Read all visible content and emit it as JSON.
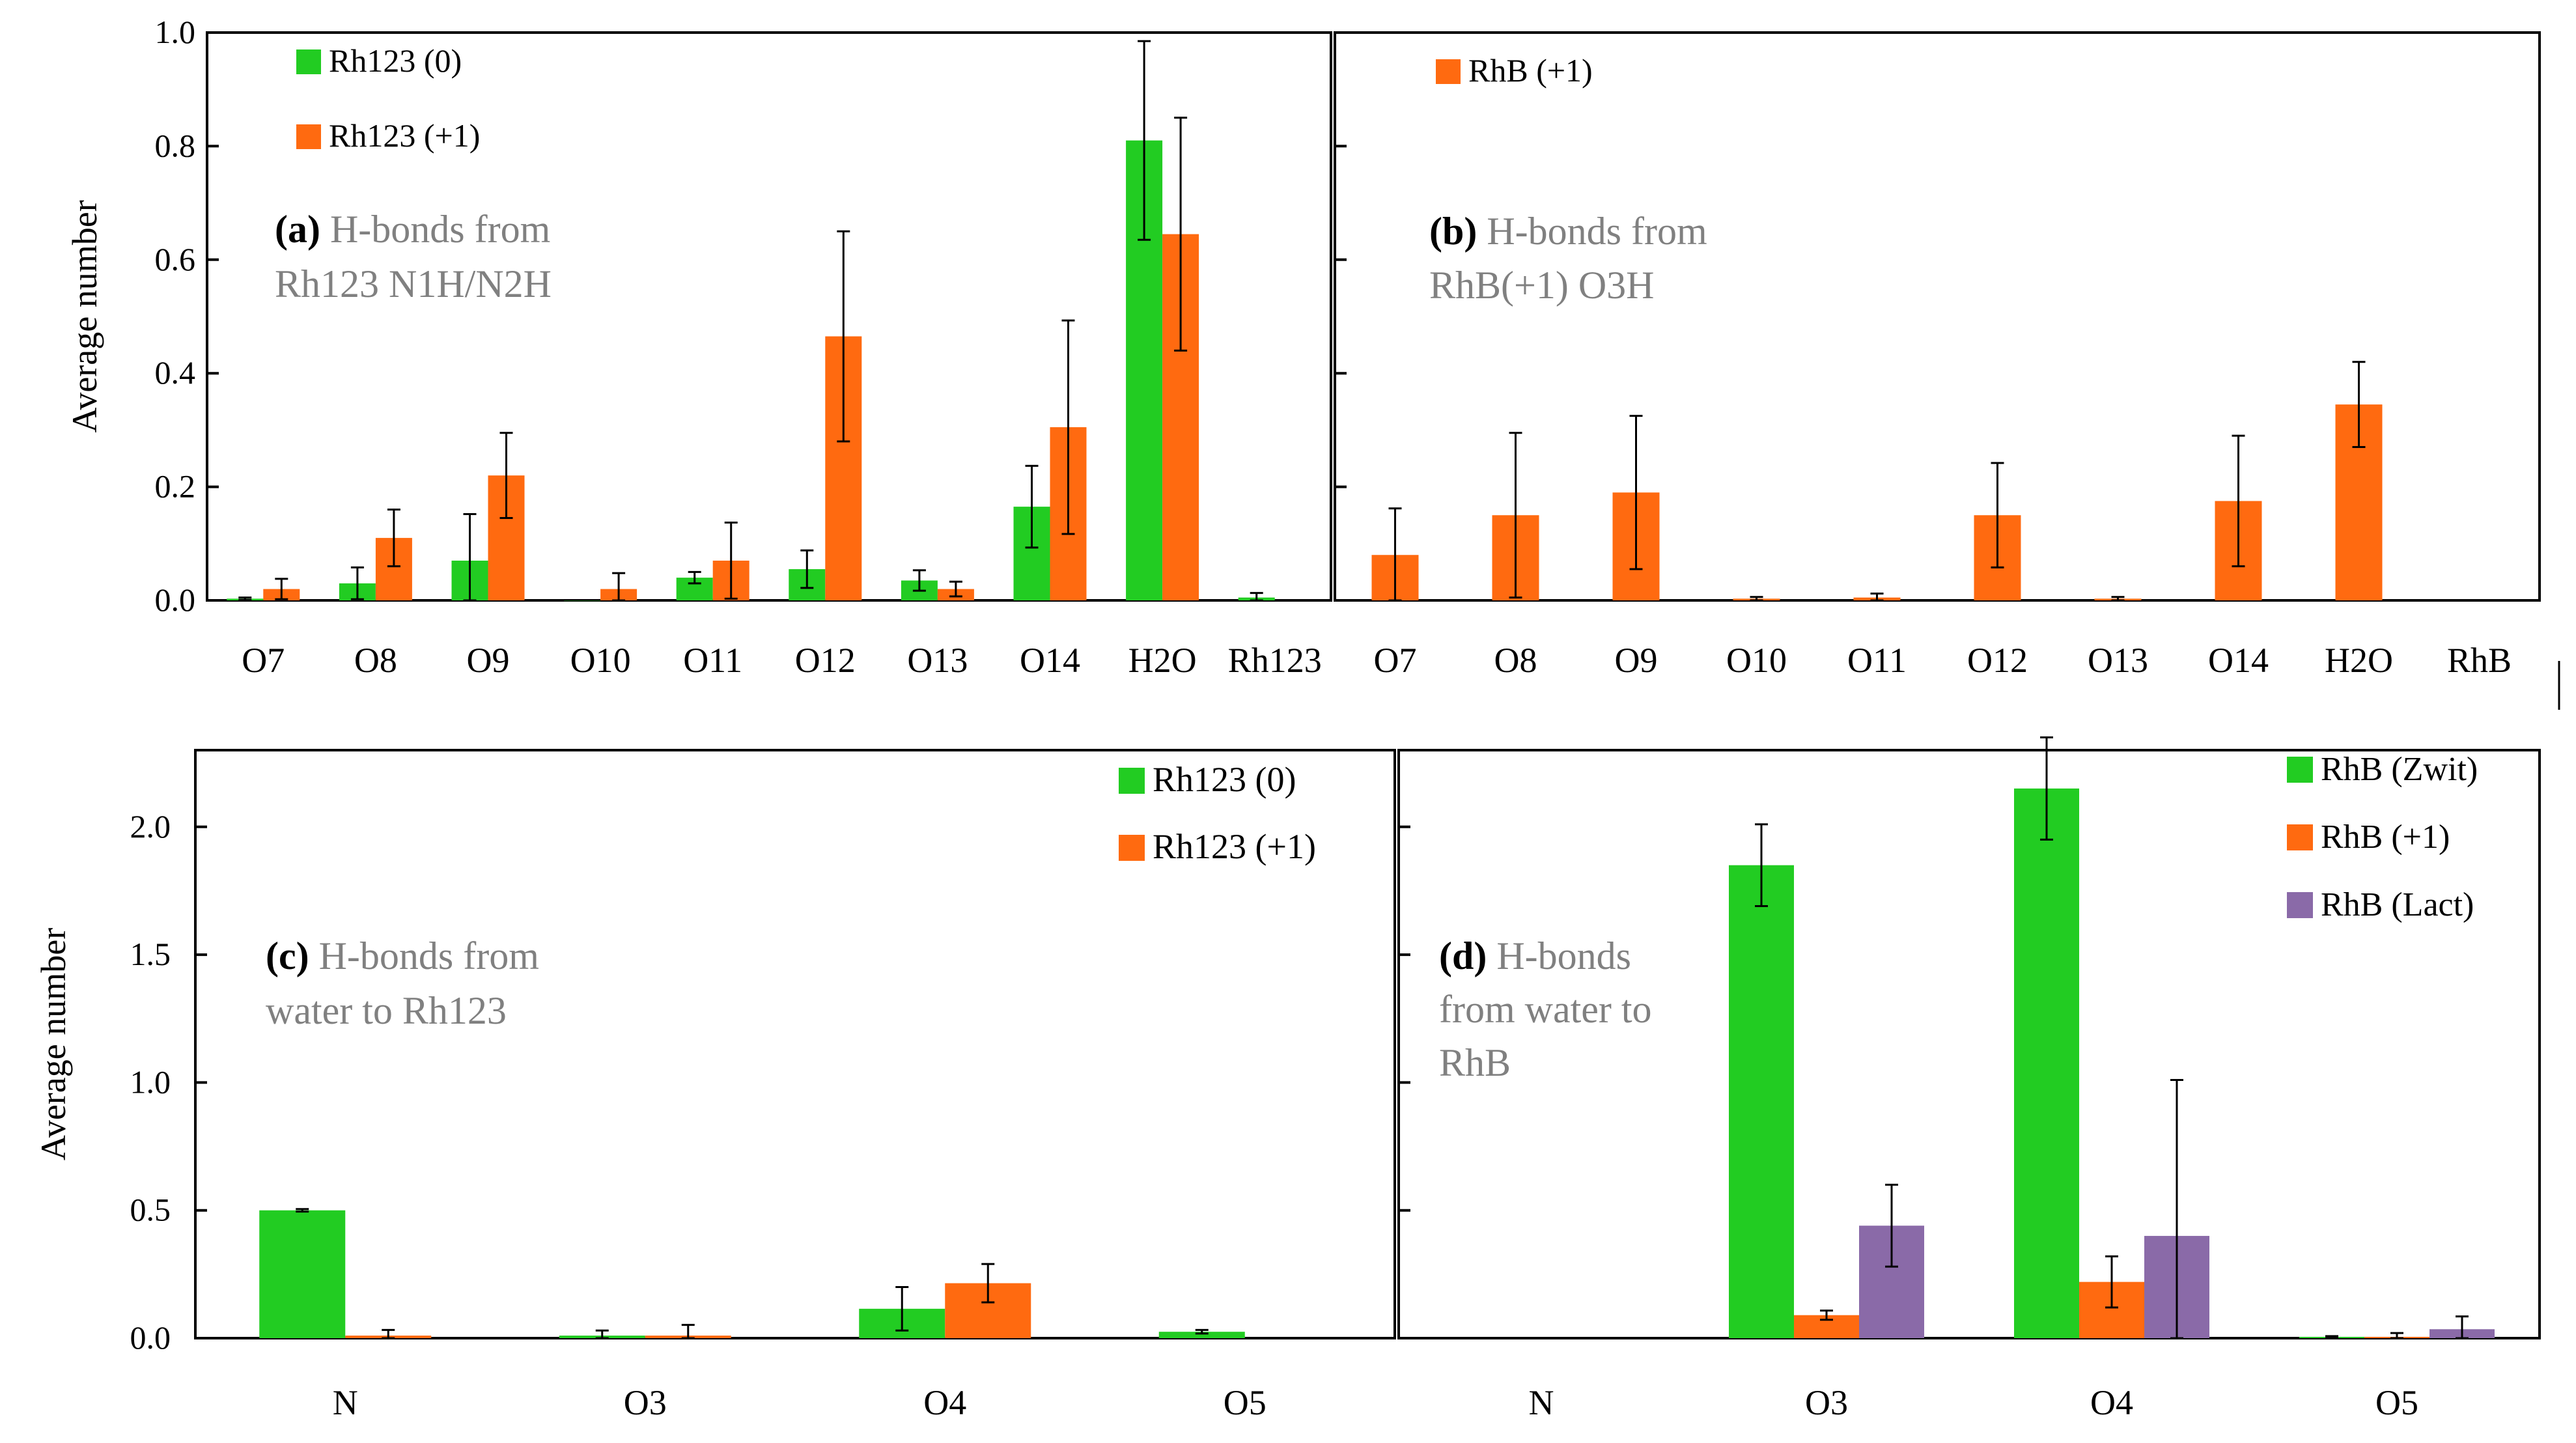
{
  "colors": {
    "green": "#22cc22",
    "orange": "#ff6a10",
    "purple": "#8a6aa8",
    "axis": "#000000",
    "annotation": "#808080"
  },
  "chart_data": [
    {
      "panel": "a",
      "type": "bar",
      "ylabel": "Average number",
      "ylim": [
        0,
        1.0
      ],
      "yticks": [
        "0.0",
        "0.2",
        "0.4",
        "0.6",
        "0.8",
        "1.0"
      ],
      "categories": [
        "O7",
        "O8",
        "O9",
        "O10",
        "O11",
        "O12",
        "O13",
        "O14",
        "H2O",
        "Rh123"
      ],
      "annotation": {
        "label": "(a)",
        "line1": "H-bonds from",
        "line2": "Rh123 N1H/N2H"
      },
      "legend_position": "top-left",
      "series": [
        {
          "name": "Rh123 (0)",
          "color_key": "green",
          "values": [
            0.003,
            0.03,
            0.07,
            0.0,
            0.04,
            0.055,
            0.035,
            0.165,
            0.81,
            0.005
          ],
          "errors": [
            0.002,
            0.028,
            0.082,
            0.0,
            0.01,
            0.033,
            0.018,
            0.072,
            0.175,
            0.008
          ]
        },
        {
          "name": "Rh123 (+1)",
          "color_key": "orange",
          "values": [
            0.02,
            0.11,
            0.22,
            0.02,
            0.07,
            0.465,
            0.02,
            0.305,
            0.645,
            null
          ],
          "errors": [
            0.018,
            0.05,
            0.075,
            0.028,
            0.067,
            0.185,
            0.013,
            0.188,
            0.205,
            null
          ]
        }
      ]
    },
    {
      "panel": "b",
      "type": "bar",
      "ylim": [
        0,
        1.0
      ],
      "categories": [
        "O7",
        "O8",
        "O9",
        "O10",
        "O11",
        "O12",
        "O13",
        "O14",
        "H2O",
        "RhB"
      ],
      "annotation": {
        "label": "(b)",
        "line1": "H-bonds from",
        "line2": "RhB(+1) O3H"
      },
      "legend_position": "top-left",
      "series": [
        {
          "name": "RhB (+1)",
          "color_key": "orange",
          "values": [
            0.08,
            0.15,
            0.19,
            0.003,
            0.005,
            0.15,
            0.003,
            0.175,
            0.345,
            null
          ],
          "errors": [
            0.082,
            0.145,
            0.135,
            0.003,
            0.007,
            0.092,
            0.003,
            0.115,
            0.075,
            null
          ]
        }
      ]
    },
    {
      "panel": "c",
      "type": "bar",
      "ylabel": "Average number",
      "ylim": [
        0,
        2.3
      ],
      "yticks": [
        "0.0",
        "0.5",
        "1.0",
        "1.5",
        "2.0"
      ],
      "categories": [
        "N",
        "O3",
        "O4",
        "O5"
      ],
      "annotation": {
        "label": "(c)",
        "line1": "H-bonds from",
        "line2": "water to Rh123"
      },
      "legend_position": "top-right",
      "series": [
        {
          "name": "Rh123 (0)",
          "color_key": "green",
          "values": [
            0.5,
            0.01,
            0.115,
            0.025
          ],
          "errors": [
            0.005,
            0.02,
            0.085,
            0.007
          ]
        },
        {
          "name": "Rh123 (+1)",
          "color_key": "orange",
          "values": [
            0.01,
            0.01,
            0.215,
            null
          ],
          "errors": [
            0.022,
            0.042,
            0.075,
            null
          ]
        }
      ]
    },
    {
      "panel": "d",
      "type": "bar",
      "ylim": [
        0,
        2.3
      ],
      "categories": [
        "N",
        "O3",
        "O4",
        "O5"
      ],
      "annotation": {
        "label": "(d)",
        "line1": "H-bonds",
        "line2": "from water to",
        "line3": "RhB"
      },
      "legend_position": "top-right",
      "series": [
        {
          "name": "RhB (Zwit)",
          "color_key": "green",
          "values": [
            null,
            1.85,
            2.15,
            0.005
          ],
          "errors": [
            null,
            0.16,
            0.2,
            0.003
          ]
        },
        {
          "name": "RhB (+1)",
          "color_key": "orange",
          "values": [
            null,
            0.09,
            0.22,
            0.005
          ],
          "errors": [
            null,
            0.018,
            0.1,
            0.015
          ]
        },
        {
          "name": "RhB (Lact)",
          "color_key": "purple",
          "values": [
            null,
            0.44,
            0.4,
            0.035
          ],
          "errors": [
            null,
            0.16,
            0.61,
            0.05
          ]
        }
      ]
    }
  ]
}
